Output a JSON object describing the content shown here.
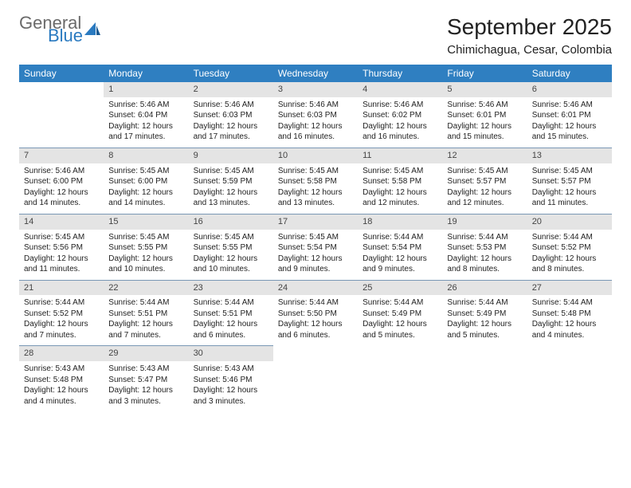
{
  "brand": {
    "general": "General",
    "blue": "Blue"
  },
  "title": "September 2025",
  "location": "Chimichagua, Cesar, Colombia",
  "colors": {
    "header_bg": "#2f7fc1",
    "header_text": "#ffffff",
    "daynum_bg": "#e4e4e4",
    "rule": "#7a98b5",
    "logo_gray": "#6a6a6a",
    "logo_blue": "#2a7ac0"
  },
  "day_headers": [
    "Sunday",
    "Monday",
    "Tuesday",
    "Wednesday",
    "Thursday",
    "Friday",
    "Saturday"
  ],
  "weeks": [
    [
      {
        "n": "",
        "lines": []
      },
      {
        "n": "1",
        "lines": [
          "Sunrise: 5:46 AM",
          "Sunset: 6:04 PM",
          "Daylight: 12 hours and 17 minutes."
        ]
      },
      {
        "n": "2",
        "lines": [
          "Sunrise: 5:46 AM",
          "Sunset: 6:03 PM",
          "Daylight: 12 hours and 17 minutes."
        ]
      },
      {
        "n": "3",
        "lines": [
          "Sunrise: 5:46 AM",
          "Sunset: 6:03 PM",
          "Daylight: 12 hours and 16 minutes."
        ]
      },
      {
        "n": "4",
        "lines": [
          "Sunrise: 5:46 AM",
          "Sunset: 6:02 PM",
          "Daylight: 12 hours and 16 minutes."
        ]
      },
      {
        "n": "5",
        "lines": [
          "Sunrise: 5:46 AM",
          "Sunset: 6:01 PM",
          "Daylight: 12 hours and 15 minutes."
        ]
      },
      {
        "n": "6",
        "lines": [
          "Sunrise: 5:46 AM",
          "Sunset: 6:01 PM",
          "Daylight: 12 hours and 15 minutes."
        ]
      }
    ],
    [
      {
        "n": "7",
        "lines": [
          "Sunrise: 5:46 AM",
          "Sunset: 6:00 PM",
          "Daylight: 12 hours and 14 minutes."
        ]
      },
      {
        "n": "8",
        "lines": [
          "Sunrise: 5:45 AM",
          "Sunset: 6:00 PM",
          "Daylight: 12 hours and 14 minutes."
        ]
      },
      {
        "n": "9",
        "lines": [
          "Sunrise: 5:45 AM",
          "Sunset: 5:59 PM",
          "Daylight: 12 hours and 13 minutes."
        ]
      },
      {
        "n": "10",
        "lines": [
          "Sunrise: 5:45 AM",
          "Sunset: 5:58 PM",
          "Daylight: 12 hours and 13 minutes."
        ]
      },
      {
        "n": "11",
        "lines": [
          "Sunrise: 5:45 AM",
          "Sunset: 5:58 PM",
          "Daylight: 12 hours and 12 minutes."
        ]
      },
      {
        "n": "12",
        "lines": [
          "Sunrise: 5:45 AM",
          "Sunset: 5:57 PM",
          "Daylight: 12 hours and 12 minutes."
        ]
      },
      {
        "n": "13",
        "lines": [
          "Sunrise: 5:45 AM",
          "Sunset: 5:57 PM",
          "Daylight: 12 hours and 11 minutes."
        ]
      }
    ],
    [
      {
        "n": "14",
        "lines": [
          "Sunrise: 5:45 AM",
          "Sunset: 5:56 PM",
          "Daylight: 12 hours and 11 minutes."
        ]
      },
      {
        "n": "15",
        "lines": [
          "Sunrise: 5:45 AM",
          "Sunset: 5:55 PM",
          "Daylight: 12 hours and 10 minutes."
        ]
      },
      {
        "n": "16",
        "lines": [
          "Sunrise: 5:45 AM",
          "Sunset: 5:55 PM",
          "Daylight: 12 hours and 10 minutes."
        ]
      },
      {
        "n": "17",
        "lines": [
          "Sunrise: 5:45 AM",
          "Sunset: 5:54 PM",
          "Daylight: 12 hours and 9 minutes."
        ]
      },
      {
        "n": "18",
        "lines": [
          "Sunrise: 5:44 AM",
          "Sunset: 5:54 PM",
          "Daylight: 12 hours and 9 minutes."
        ]
      },
      {
        "n": "19",
        "lines": [
          "Sunrise: 5:44 AM",
          "Sunset: 5:53 PM",
          "Daylight: 12 hours and 8 minutes."
        ]
      },
      {
        "n": "20",
        "lines": [
          "Sunrise: 5:44 AM",
          "Sunset: 5:52 PM",
          "Daylight: 12 hours and 8 minutes."
        ]
      }
    ],
    [
      {
        "n": "21",
        "lines": [
          "Sunrise: 5:44 AM",
          "Sunset: 5:52 PM",
          "Daylight: 12 hours and 7 minutes."
        ]
      },
      {
        "n": "22",
        "lines": [
          "Sunrise: 5:44 AM",
          "Sunset: 5:51 PM",
          "Daylight: 12 hours and 7 minutes."
        ]
      },
      {
        "n": "23",
        "lines": [
          "Sunrise: 5:44 AM",
          "Sunset: 5:51 PM",
          "Daylight: 12 hours and 6 minutes."
        ]
      },
      {
        "n": "24",
        "lines": [
          "Sunrise: 5:44 AM",
          "Sunset: 5:50 PM",
          "Daylight: 12 hours and 6 minutes."
        ]
      },
      {
        "n": "25",
        "lines": [
          "Sunrise: 5:44 AM",
          "Sunset: 5:49 PM",
          "Daylight: 12 hours and 5 minutes."
        ]
      },
      {
        "n": "26",
        "lines": [
          "Sunrise: 5:44 AM",
          "Sunset: 5:49 PM",
          "Daylight: 12 hours and 5 minutes."
        ]
      },
      {
        "n": "27",
        "lines": [
          "Sunrise: 5:44 AM",
          "Sunset: 5:48 PM",
          "Daylight: 12 hours and 4 minutes."
        ]
      }
    ],
    [
      {
        "n": "28",
        "lines": [
          "Sunrise: 5:43 AM",
          "Sunset: 5:48 PM",
          "Daylight: 12 hours and 4 minutes."
        ]
      },
      {
        "n": "29",
        "lines": [
          "Sunrise: 5:43 AM",
          "Sunset: 5:47 PM",
          "Daylight: 12 hours and 3 minutes."
        ]
      },
      {
        "n": "30",
        "lines": [
          "Sunrise: 5:43 AM",
          "Sunset: 5:46 PM",
          "Daylight: 12 hours and 3 minutes."
        ]
      },
      {
        "n": "",
        "lines": []
      },
      {
        "n": "",
        "lines": []
      },
      {
        "n": "",
        "lines": []
      },
      {
        "n": "",
        "lines": []
      }
    ]
  ]
}
